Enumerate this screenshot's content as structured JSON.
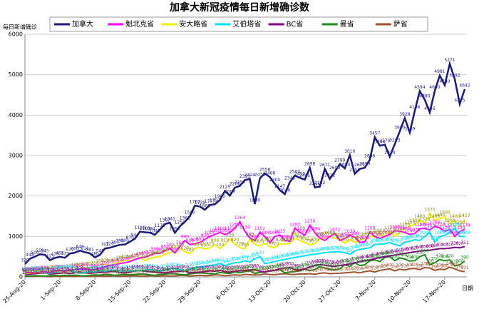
{
  "chart_data": {
    "type": "line",
    "title": "加拿大新冠疫情每日新增确诊数",
    "y_label": "每日新增确诊",
    "x_label": "日期",
    "categories": [
      "25-Aug-20",
      null,
      null,
      null,
      null,
      null,
      null,
      "1-Sep-20",
      null,
      null,
      null,
      null,
      null,
      null,
      "8-Sep-20",
      null,
      null,
      null,
      null,
      null,
      null,
      "15-Sep-20",
      null,
      null,
      null,
      null,
      null,
      null,
      "22-Sep-20",
      null,
      null,
      null,
      null,
      null,
      null,
      "29-Sep-20",
      null,
      null,
      null,
      null,
      null,
      null,
      "6-Oct-20",
      null,
      null,
      null,
      null,
      null,
      null,
      "13-Oct-20",
      null,
      null,
      null,
      null,
      null,
      null,
      "20-Oct-20",
      null,
      null,
      null,
      null,
      null,
      null,
      "27-Oct-20",
      null,
      null,
      null,
      null,
      null,
      null,
      "3-Nov-20",
      null,
      null,
      null,
      null,
      null,
      null,
      "10-Nov-20",
      null,
      null,
      null,
      null,
      null,
      null,
      "17-Nov-20",
      null,
      null,
      null,
      null
    ],
    "ylim": [
      0,
      6000
    ],
    "yticks": [
      0,
      1000,
      2000,
      3000,
      4000,
      5000,
      6000
    ],
    "grid": true,
    "series": [
      {
        "name": "加拿大",
        "color": "#1a1a80",
        "values": [
          320,
          448,
          500,
          559,
          545,
          413,
          470,
          495,
          473,
          577,
          600,
          649,
          611,
          581,
          480,
          545,
          702,
          720,
          760,
          793,
          800,
          870,
          944,
          1120,
          1103,
          1094,
          1040,
          1170,
          1307,
          1341,
          1090,
          1250,
          1362,
          1500,
          1763,
          1739,
          1660,
          1777,
          1797,
          1900,
          2125,
          2009,
          2206,
          2250,
          2393,
          2424,
          1800,
          2436,
          2558,
          2468,
          2300,
          2147,
          2046,
          2345,
          2504,
          2450,
          2405,
          2698,
          2211,
          2232,
          2671,
          2422,
          2600,
          2789,
          2684,
          3010,
          2551,
          2671,
          2699,
          2896,
          3457,
          3244,
          3270,
          2974,
          3283,
          3600,
          3928,
          3569,
          4106,
          4594,
          4380,
          4066,
          4600,
          4981,
          4740,
          5271,
          4892,
          4275,
          4642
        ]
      },
      {
        "name": "魁北克省",
        "color": "#ff00ff",
        "values": [
          100,
          110,
          95,
          120,
          130,
          105,
          150,
          160,
          140,
          170,
          180,
          190,
          200,
          170,
          180,
          210,
          250,
          290,
          300,
          330,
          350,
          380,
          430,
          470,
          490,
          530,
          590,
          580,
          650,
          700,
          590,
          750,
          900,
          800,
          820,
          850,
          930,
          1000,
          1050,
          1100,
          1050,
          1100,
          1200,
          1364,
          1130,
          960,
          900,
          1102,
          1000,
          850,
          1000,
          1035,
          900,
          880,
          1203,
          1100,
          1030,
          1279,
          1094,
          960,
          900,
          1000,
          1072,
          900,
          950,
          1030,
          980,
          850,
          870,
          1108,
          1000,
          950,
          1000,
          1050,
          1140,
          1131,
          1100,
          1050,
          1070,
          1190,
          1200,
          1162,
          1250,
          1208,
          1130,
          1175,
          1000,
          1120,
          1179
        ]
      },
      {
        "name": "安大略省",
        "color": "#f0f000",
        "values": [
          80,
          90,
          110,
          100,
          120,
          130,
          140,
          150,
          130,
          170,
          190,
          200,
          220,
          230,
          250,
          300,
          310,
          290,
          330,
          380,
          410,
          400,
          420,
          480,
          400,
          450,
          490,
          500,
          560,
          600,
          650,
          700,
          620,
          580,
          700,
          730,
          690,
          720,
          800,
          700,
          810,
          939,
          820,
          720,
          700,
          939,
          800,
          770,
          830,
          750,
          720,
          820,
          810,
          830,
          960,
          900,
          850,
          790,
          830,
          940,
          970,
          1000,
          950,
          930,
          830,
          920,
          850,
          900,
          960,
          1000,
          1000,
          1050,
          1000,
          1120,
          1003,
          1100,
          1200,
          1250,
          1300,
          1400,
          1328,
          1575,
          1400,
          1440,
          1500,
          1300,
          1400,
          1250,
          1417
        ]
      },
      {
        "name": "艾伯塔省",
        "color": "#00e0ff",
        "values": [
          90,
          100,
          120,
          110,
          100,
          85,
          120,
          140,
          160,
          150,
          120,
          90,
          110,
          130,
          120,
          150,
          140,
          160,
          170,
          130,
          145,
          150,
          140,
          160,
          170,
          180,
          150,
          145,
          170,
          200,
          210,
          180,
          150,
          190,
          230,
          250,
          260,
          280,
          300,
          330,
          280,
          320,
          350,
          360,
          400,
          370,
          450,
          500,
          330,
          350,
          380,
          410,
          430,
          460,
          480,
          500,
          520,
          550,
          560,
          580,
          600,
          610,
          620,
          620,
          600,
          560,
          640,
          680,
          700,
          720,
          800,
          810,
          820,
          850,
          800,
          770,
          860,
          880,
          919,
          900,
          1000,
          1100,
          860,
          1000,
          1026,
          1105,
          1200,
          1000,
          1000
        ]
      },
      {
        "name": "BC省",
        "color": "#800080",
        "values": [
          60,
          70,
          80,
          90,
          100,
          70,
          80,
          90,
          100,
          80,
          110,
          120,
          100,
          90,
          100,
          110,
          120,
          130,
          140,
          110,
          100,
          120,
          150,
          160,
          140,
          130,
          120,
          110,
          100,
          120,
          130,
          140,
          150,
          100,
          110,
          120,
          130,
          150,
          140,
          160,
          130,
          120,
          140,
          150,
          160,
          170,
          180,
          140,
          120,
          150,
          160,
          200,
          220,
          230,
          180,
          170,
          200,
          250,
          280,
          300,
          290,
          270,
          260,
          280,
          300,
          320,
          350,
          380,
          400,
          420,
          450,
          480,
          500,
          520,
          540,
          560,
          580,
          600,
          620,
          640,
          650,
          660,
          680,
          700,
          700,
          710,
          730,
          720,
          751
        ]
      },
      {
        "name": "曼省",
        "color": "#1e8a1e",
        "values": [
          20,
          25,
          30,
          25,
          20,
          30,
          35,
          30,
          40,
          35,
          45,
          30,
          25,
          40,
          50,
          45,
          60,
          55,
          40,
          50,
          60,
          55,
          60,
          70,
          65,
          50,
          40,
          60,
          70,
          80,
          75,
          60,
          50,
          70,
          90,
          100,
          90,
          80,
          70,
          110,
          95,
          85,
          120,
          100,
          130,
          150,
          80,
          110,
          120,
          140,
          160,
          180,
          100,
          120,
          130,
          150,
          200,
          150,
          180,
          250,
          220,
          190,
          170,
          200,
          300,
          260,
          350,
          280,
          300,
          400,
          420,
          380,
          480,
          500,
          400,
          470,
          440,
          390,
          400,
          500,
          550,
          300,
          350,
          430,
          400,
          420,
          270,
          300,
          390
        ]
      },
      {
        "name": "萨省",
        "color": "#a0522d",
        "values": [
          10,
          15,
          10,
          20,
          10,
          5,
          15,
          10,
          20,
          15,
          10,
          20,
          15,
          10,
          20,
          25,
          15,
          20,
          30,
          10,
          20,
          25,
          30,
          20,
          15,
          30,
          25,
          20,
          30,
          20,
          25,
          35,
          40,
          20,
          30,
          40,
          30,
          35,
          50,
          45,
          30,
          40,
          50,
          40,
          60,
          55,
          45,
          50,
          70,
          60,
          55,
          70,
          80,
          65,
          60,
          75,
          70,
          80,
          65,
          90,
          100,
          80,
          85,
          90,
          100,
          110,
          120,
          100,
          130,
          150,
          120,
          160,
          180,
          200,
          150,
          190,
          170,
          200,
          210,
          180,
          230,
          220,
          160,
          190,
          180,
          240,
          200,
          150,
          131
        ]
      }
    ]
  }
}
